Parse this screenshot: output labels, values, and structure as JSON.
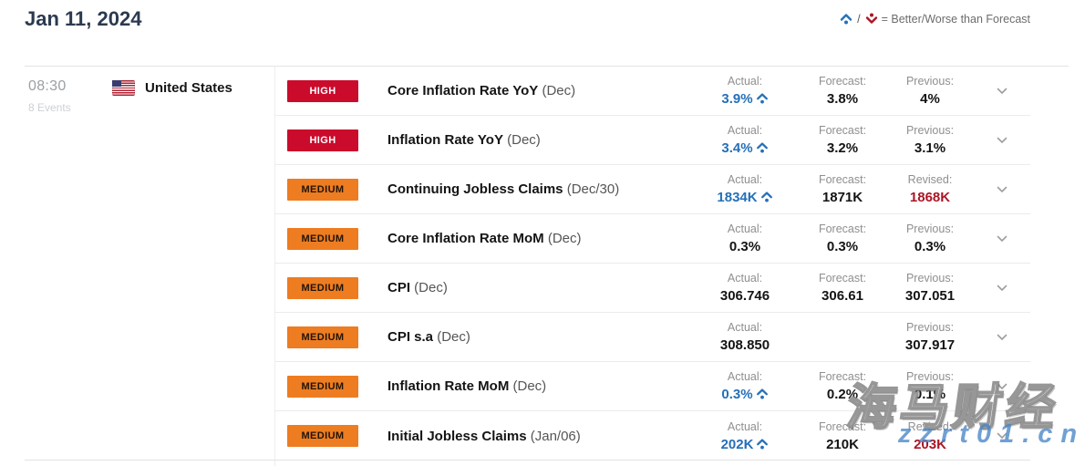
{
  "header": {
    "date": "Jan 11, 2024",
    "legend": {
      "separator": "/",
      "text": "= Better/Worse than Forecast"
    }
  },
  "group": {
    "time": "08:30",
    "events_count": "8 Events",
    "country": "United States"
  },
  "colors": {
    "better_blue": "#2570b7",
    "worse_red": "#ab1526",
    "high_badge": "#cb0b2c",
    "medium_badge": "#ee7c21",
    "revised_red": "#ab1526"
  },
  "table": {
    "rows": [
      {
        "importance": "HIGH",
        "name": "Core Inflation Rate YoY",
        "period": "(Dec)",
        "actual": {
          "label": "Actual:",
          "value": "3.9%",
          "better": true
        },
        "forecast": {
          "label": "Forecast:",
          "value": "3.8%"
        },
        "third": {
          "label": "Previous:",
          "value": "4%"
        }
      },
      {
        "importance": "HIGH",
        "name": "Inflation Rate YoY",
        "period": "(Dec)",
        "actual": {
          "label": "Actual:",
          "value": "3.4%",
          "better": true
        },
        "forecast": {
          "label": "Forecast:",
          "value": "3.2%"
        },
        "third": {
          "label": "Previous:",
          "value": "3.1%"
        }
      },
      {
        "importance": "MEDIUM",
        "name": "Continuing Jobless Claims",
        "period": "(Dec/30)",
        "actual": {
          "label": "Actual:",
          "value": "1834K",
          "better": true
        },
        "forecast": {
          "label": "Forecast:",
          "value": "1871K"
        },
        "third": {
          "label": "Revised:",
          "value": "1868K",
          "revised": true
        }
      },
      {
        "importance": "MEDIUM",
        "name": "Core Inflation Rate MoM",
        "period": "(Dec)",
        "actual": {
          "label": "Actual:",
          "value": "0.3%"
        },
        "forecast": {
          "label": "Forecast:",
          "value": "0.3%"
        },
        "third": {
          "label": "Previous:",
          "value": "0.3%"
        }
      },
      {
        "importance": "MEDIUM",
        "name": "CPI",
        "period": "(Dec)",
        "actual": {
          "label": "Actual:",
          "value": "306.746"
        },
        "forecast": {
          "label": "Forecast:",
          "value": "306.61"
        },
        "third": {
          "label": "Previous:",
          "value": "307.051"
        }
      },
      {
        "importance": "MEDIUM",
        "name": "CPI s.a",
        "period": "(Dec)",
        "actual": {
          "label": "Actual:",
          "value": "308.850"
        },
        "forecast": {
          "label": "",
          "value": ""
        },
        "third": {
          "label": "Previous:",
          "value": "307.917"
        }
      },
      {
        "importance": "MEDIUM",
        "name": "Inflation Rate MoM",
        "period": "(Dec)",
        "actual": {
          "label": "Actual:",
          "value": "0.3%",
          "better": true
        },
        "forecast": {
          "label": "Forecast:",
          "value": "0.2%"
        },
        "third": {
          "label": "Previous:",
          "value": "0.1%"
        }
      },
      {
        "importance": "MEDIUM",
        "name": "Initial Jobless Claims",
        "period": "(Jan/06)",
        "actual": {
          "label": "Actual:",
          "value": "202K",
          "better": true
        },
        "forecast": {
          "label": "Forecast:",
          "value": "210K"
        },
        "third": {
          "label": "Revised:",
          "value": "203K",
          "revised": true
        }
      }
    ]
  },
  "watermark": {
    "line1": "海马财经",
    "line2": "zzrt01.cn"
  }
}
